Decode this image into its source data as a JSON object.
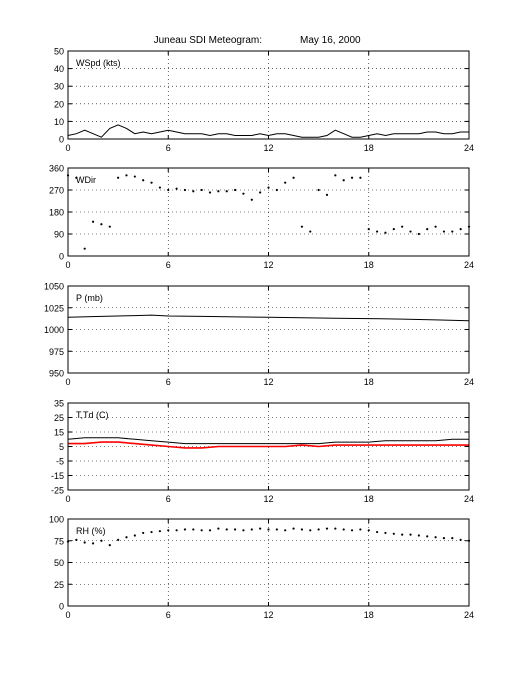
{
  "title": "Juneau SDI Meteogram:",
  "date": "May 16, 2000",
  "chart_data": [
    {
      "type": "line",
      "label": "WSpd (kts)",
      "xlim": [
        0,
        24
      ],
      "xticks": [
        0,
        6,
        12,
        18,
        24
      ],
      "ylim": [
        0,
        50
      ],
      "yticks": [
        0,
        10,
        20,
        30,
        40,
        50
      ],
      "grid": true,
      "series": [
        {
          "color": "#000000",
          "x": [
            0,
            0.5,
            1.0,
            1.5,
            2.0,
            2.5,
            3.0,
            3.5,
            4.0,
            4.5,
            5.0,
            5.5,
            6.0,
            6.5,
            7.0,
            7.5,
            8.0,
            8.5,
            9.0,
            9.5,
            10.0,
            10.5,
            11.0,
            11.5,
            12.0,
            12.5,
            13.0,
            13.5,
            14.0,
            14.5,
            15.0,
            15.5,
            16.0,
            16.5,
            17.0,
            17.5,
            18.0,
            18.5,
            19.0,
            19.5,
            20.0,
            20.5,
            21.0,
            21.5,
            22.0,
            22.5,
            23.0,
            23.5,
            24.0
          ],
          "values": [
            2,
            3,
            5,
            3,
            1,
            6,
            8,
            6,
            3,
            4,
            3,
            4,
            5,
            4,
            3,
            3,
            3,
            2,
            3,
            3,
            2,
            2,
            2,
            3,
            2,
            3,
            3,
            2,
            1,
            1,
            1,
            2,
            5,
            3,
            1,
            1,
            2,
            3,
            2,
            3,
            3,
            3,
            3,
            4,
            4,
            3,
            3,
            4,
            4
          ]
        }
      ]
    },
    {
      "type": "scatter",
      "label": "WDir",
      "xlim": [
        0,
        24
      ],
      "xticks": [
        0,
        6,
        12,
        18,
        24
      ],
      "ylim": [
        0,
        360
      ],
      "yticks": [
        0,
        90,
        180,
        270,
        360
      ],
      "grid": true,
      "series": [
        {
          "color": "#000000",
          "x": [
            0,
            0.5,
            1.0,
            1.5,
            2.0,
            2.5,
            3.0,
            3.5,
            4.0,
            4.5,
            5.0,
            5.5,
            6.0,
            6.5,
            7.0,
            7.5,
            8.0,
            8.5,
            9.0,
            9.5,
            10.0,
            10.5,
            11.0,
            11.5,
            12.0,
            12.5,
            13.0,
            13.5,
            14.0,
            14.5,
            15.0,
            15.5,
            16.0,
            16.5,
            17.0,
            17.5,
            18.0,
            18.5,
            19.0,
            19.5,
            20.0,
            20.5,
            21.0,
            21.5,
            22.0,
            22.5,
            23.0,
            23.5,
            24.0
          ],
          "values": [
            330,
            320,
            30,
            140,
            130,
            120,
            320,
            330,
            325,
            310,
            300,
            280,
            270,
            275,
            270,
            265,
            270,
            260,
            265,
            265,
            270,
            255,
            230,
            260,
            280,
            270,
            300,
            320,
            120,
            100,
            270,
            250,
            330,
            310,
            320,
            320,
            110,
            100,
            95,
            110,
            120,
            100,
            90,
            110,
            120,
            100,
            100,
            110,
            120
          ]
        }
      ]
    },
    {
      "type": "line",
      "label": "P (mb)",
      "xlim": [
        0,
        24
      ],
      "xticks": [
        0,
        6,
        12,
        18,
        24
      ],
      "ylim": [
        950,
        1050
      ],
      "yticks": [
        950,
        975,
        1000,
        1025,
        1050
      ],
      "grid": true,
      "series": [
        {
          "color": "#000000",
          "x": [
            0,
            2,
            4,
            5,
            6,
            8,
            10,
            12,
            14,
            16,
            18,
            20,
            22,
            24
          ],
          "values": [
            1014,
            1015,
            1016,
            1016.5,
            1015.5,
            1015,
            1014.5,
            1014,
            1013.5,
            1013,
            1012.5,
            1012,
            1011,
            1010
          ]
        }
      ]
    },
    {
      "type": "line",
      "label": "T,Td (C)",
      "xlim": [
        0,
        24
      ],
      "xticks": [
        0,
        6,
        12,
        18,
        24
      ],
      "ylim": [
        -25,
        35
      ],
      "yticks": [
        -25,
        -15,
        -5,
        5,
        15,
        25,
        35
      ],
      "grid": true,
      "series": [
        {
          "color": "#000000",
          "x": [
            0,
            1,
            2,
            3,
            4,
            5,
            6,
            7,
            8,
            9,
            10,
            11,
            12,
            13,
            14,
            15,
            16,
            17,
            18,
            19,
            20,
            21,
            22,
            23,
            24
          ],
          "values": [
            10,
            11,
            11,
            11,
            10,
            9,
            8,
            7,
            7,
            7,
            7,
            7,
            7,
            7,
            7,
            7,
            8,
            8,
            8,
            9,
            9,
            9,
            9,
            10,
            10
          ]
        },
        {
          "color": "#ff0000",
          "x": [
            0,
            1,
            2,
            3,
            4,
            5,
            6,
            7,
            8,
            9,
            10,
            11,
            12,
            13,
            14,
            15,
            16,
            17,
            18,
            19,
            20,
            21,
            22,
            23,
            24
          ],
          "values": [
            7,
            7,
            8,
            8,
            7,
            6,
            5,
            4,
            4,
            5,
            5,
            5,
            5,
            5,
            6,
            5,
            6,
            6,
            6,
            6,
            6,
            6,
            6,
            6,
            6
          ]
        }
      ]
    },
    {
      "type": "scatter",
      "label": "RH (%)",
      "xlim": [
        0,
        24
      ],
      "xticks": [
        0,
        6,
        12,
        18,
        24
      ],
      "ylim": [
        0,
        100
      ],
      "yticks": [
        0,
        25,
        50,
        75,
        100
      ],
      "grid": true,
      "series": [
        {
          "color": "#000000",
          "x": [
            0,
            0.5,
            1.0,
            1.5,
            2.0,
            2.5,
            3.0,
            3.5,
            4.0,
            4.5,
            5.0,
            5.5,
            6.0,
            6.5,
            7.0,
            7.5,
            8.0,
            8.5,
            9.0,
            9.5,
            10.0,
            10.5,
            11.0,
            11.5,
            12.0,
            12.5,
            13.0,
            13.5,
            14.0,
            14.5,
            15.0,
            15.5,
            16.0,
            16.5,
            17.0,
            17.5,
            18.0,
            18.5,
            19.0,
            19.5,
            20.0,
            20.5,
            21.0,
            21.5,
            22.0,
            22.5,
            23.0,
            23.5,
            24.0
          ],
          "values": [
            74,
            76,
            73,
            72,
            75,
            70,
            76,
            79,
            81,
            84,
            85,
            86,
            87,
            87,
            88,
            88,
            87,
            87,
            89,
            88,
            88,
            87,
            88,
            89,
            88,
            88,
            87,
            89,
            88,
            87,
            88,
            89,
            89,
            88,
            87,
            88,
            87,
            85,
            84,
            83,
            82,
            82,
            81,
            80,
            79,
            78,
            78,
            76,
            75
          ]
        }
      ]
    }
  ]
}
